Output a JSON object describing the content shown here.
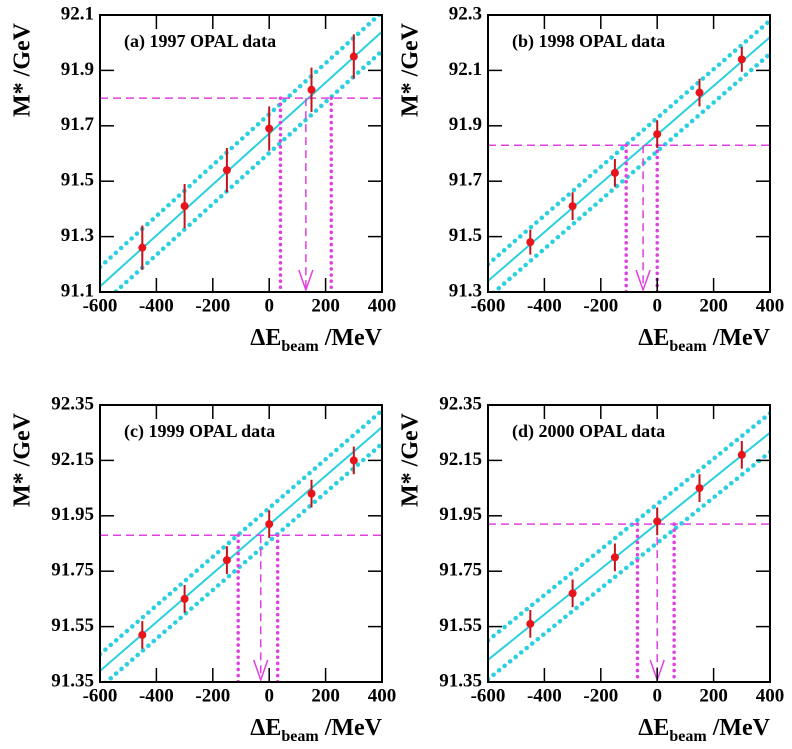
{
  "chart_data": [
    {
      "type": "scatter",
      "title": "(a) 1997 OPAL data",
      "y_label": "M* /GeV",
      "x_label": {
        "main": "ΔE",
        "sub": "beam",
        "unit": "/MeV"
      },
      "x": [
        -450,
        -300,
        -150,
        0,
        150,
        300
      ],
      "values": [
        91.26,
        91.41,
        91.54,
        91.69,
        91.83,
        91.95
      ],
      "errors": [
        0.08,
        0.08,
        0.08,
        0.08,
        0.08,
        0.08
      ],
      "fit": {
        "x": [
          -600,
          400
        ],
        "y": [
          91.12,
          92.04
        ]
      },
      "band": {
        "upper": [
          91.19,
          92.11
        ],
        "lower": [
          91.05,
          91.97
        ]
      },
      "horizontal_line": 91.8,
      "arrow_x": 130,
      "interval": [
        40,
        220
      ],
      "xlim": [
        -600,
        400
      ],
      "xticks": [
        -600,
        -400,
        -200,
        0,
        200,
        400
      ],
      "ylim": [
        91.1,
        92.1
      ],
      "yticks": [
        91.1,
        91.3,
        91.5,
        91.7,
        91.9,
        92.1
      ],
      "point_color": "#e8141c",
      "error_color": "#c0141c",
      "fit_color": "#2ad0e0",
      "marker_color": "#e040e0"
    },
    {
      "type": "scatter",
      "title": "(b) 1998 OPAL data",
      "y_label": "M* /GeV",
      "x_label": {
        "main": "ΔE",
        "sub": "beam",
        "unit": "/MeV"
      },
      "x": [
        -450,
        -300,
        -150,
        0,
        150,
        300
      ],
      "values": [
        91.48,
        91.61,
        91.73,
        91.87,
        92.02,
        92.14
      ],
      "errors": [
        0.045,
        0.05,
        0.05,
        0.05,
        0.05,
        0.045
      ],
      "fit": {
        "x": [
          -600,
          400
        ],
        "y": [
          91.34,
          92.22
        ]
      },
      "band": {
        "upper": [
          91.4,
          92.28
        ],
        "lower": [
          91.28,
          92.16
        ]
      },
      "horizontal_line": 91.83,
      "arrow_x": -50,
      "interval": [
        -110,
        0
      ],
      "xlim": [
        -600,
        400
      ],
      "xticks": [
        -600,
        -400,
        -200,
        0,
        200,
        400
      ],
      "ylim": [
        91.3,
        92.3
      ],
      "yticks": [
        91.3,
        91.5,
        91.7,
        91.9,
        92.1,
        92.3
      ],
      "point_color": "#e8141c",
      "error_color": "#c0141c",
      "fit_color": "#2ad0e0",
      "marker_color": "#e040e0"
    },
    {
      "type": "scatter",
      "title": "(c) 1999 OPAL data",
      "y_label": "M* /GeV",
      "x_label": {
        "main": "ΔE",
        "sub": "beam",
        "unit": "/MeV"
      },
      "x": [
        -450,
        -300,
        -150,
        0,
        150,
        300
      ],
      "values": [
        91.52,
        91.65,
        91.79,
        91.92,
        92.03,
        92.15
      ],
      "errors": [
        0.05,
        0.05,
        0.05,
        0.05,
        0.05,
        0.05
      ],
      "fit": {
        "x": [
          -600,
          400
        ],
        "y": [
          91.39,
          92.27
        ]
      },
      "band": {
        "upper": [
          91.45,
          92.33
        ],
        "lower": [
          91.33,
          92.21
        ]
      },
      "horizontal_line": 91.88,
      "arrow_x": -30,
      "interval": [
        -110,
        30
      ],
      "xlim": [
        -600,
        400
      ],
      "xticks": [
        -600,
        -400,
        -200,
        0,
        200,
        400
      ],
      "ylim": [
        91.35,
        92.35
      ],
      "yticks": [
        91.35,
        91.55,
        91.75,
        91.95,
        92.15,
        92.35
      ],
      "point_color": "#e8141c",
      "error_color": "#c0141c",
      "fit_color": "#2ad0e0",
      "marker_color": "#e040e0"
    },
    {
      "type": "scatter",
      "title": "(d) 2000 OPAL data",
      "y_label": "M* /GeV",
      "x_label": {
        "main": "ΔE",
        "sub": "beam",
        "unit": "/MeV"
      },
      "x": [
        -450,
        -300,
        -150,
        0,
        150,
        300
      ],
      "values": [
        91.56,
        91.67,
        91.8,
        91.93,
        92.05,
        92.17
      ],
      "errors": [
        0.05,
        0.05,
        0.05,
        0.05,
        0.05,
        0.05
      ],
      "fit": {
        "x": [
          -600,
          400
        ],
        "y": [
          91.43,
          92.25
        ]
      },
      "band": {
        "upper": [
          91.5,
          92.32
        ],
        "lower": [
          91.36,
          92.18
        ]
      },
      "horizontal_line": 91.92,
      "arrow_x": 0,
      "interval": [
        -70,
        60
      ],
      "xlim": [
        -600,
        400
      ],
      "xticks": [
        -600,
        -400,
        -200,
        0,
        200,
        400
      ],
      "ylim": [
        91.35,
        92.35
      ],
      "yticks": [
        91.35,
        91.55,
        91.75,
        91.95,
        92.15,
        92.35
      ],
      "point_color": "#e8141c",
      "error_color": "#c0141c",
      "fit_color": "#2ad0e0",
      "marker_color": "#e040e0"
    }
  ]
}
